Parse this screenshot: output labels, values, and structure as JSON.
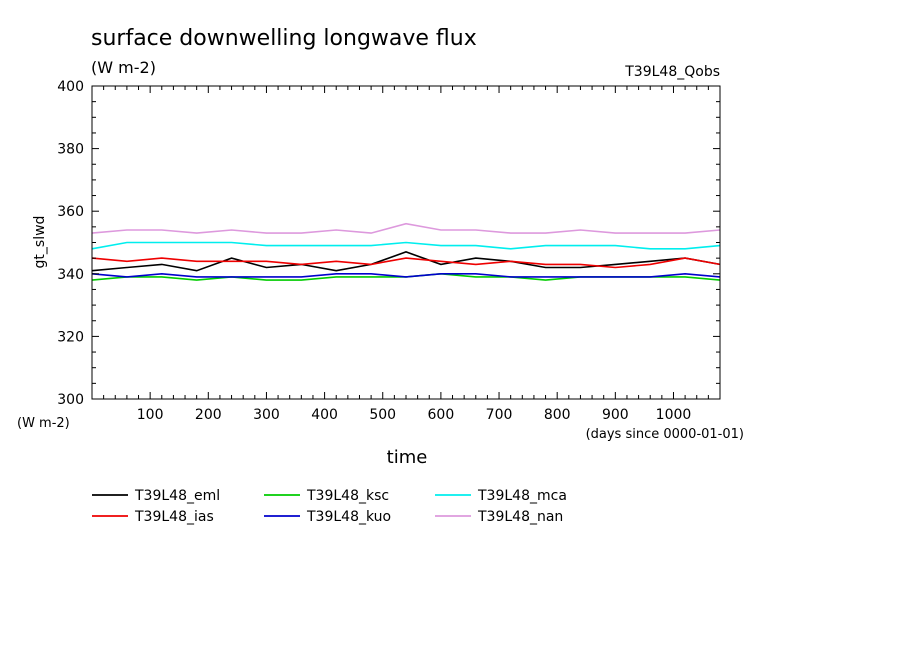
{
  "chart_data": {
    "type": "line",
    "title": "surface downwelling longwave flux",
    "subtitle": "(W m-2)",
    "experiment": "T39L48_Qobs",
    "xlabel": "time",
    "xunits": "(days since 0000-01-01)",
    "ylabel": "gt_slwd",
    "yunits": "(W m-2)",
    "xlim": [
      0,
      1080
    ],
    "ylim": [
      300,
      400
    ],
    "xticks": [
      100,
      200,
      300,
      400,
      500,
      600,
      700,
      800,
      900,
      1000
    ],
    "yticks": [
      300,
      320,
      340,
      360,
      380,
      400
    ],
    "grid": false,
    "legend_position": "bottom",
    "x": [
      0,
      60,
      120,
      180,
      240,
      300,
      360,
      420,
      480,
      540,
      600,
      660,
      720,
      780,
      840,
      900,
      960,
      1020,
      1080
    ],
    "series": [
      {
        "name": "T39L48_eml",
        "color": "#000000",
        "values": [
          341,
          342,
          343,
          341,
          345,
          342,
          343,
          341,
          343,
          347,
          343,
          345,
          344,
          342,
          342,
          343,
          344,
          345,
          343
        ]
      },
      {
        "name": "T39L48_ias",
        "color": "#ee0000",
        "values": [
          345,
          344,
          345,
          344,
          344,
          344,
          343,
          344,
          343,
          345,
          344,
          343,
          344,
          343,
          343,
          342,
          343,
          345,
          343
        ]
      },
      {
        "name": "T39L48_ksc",
        "color": "#00cc00",
        "values": [
          338,
          339,
          339,
          338,
          339,
          338,
          338,
          339,
          339,
          339,
          340,
          339,
          339,
          338,
          339,
          339,
          339,
          339,
          338
        ]
      },
      {
        "name": "T39L48_kuo",
        "color": "#0000cc",
        "values": [
          340,
          339,
          340,
          339,
          339,
          339,
          339,
          340,
          340,
          339,
          340,
          340,
          339,
          339,
          339,
          339,
          339,
          340,
          339
        ]
      },
      {
        "name": "T39L48_mca",
        "color": "#00eeee",
        "values": [
          348,
          350,
          350,
          350,
          350,
          349,
          349,
          349,
          349,
          350,
          349,
          349,
          348,
          349,
          349,
          349,
          348,
          348,
          349
        ]
      },
      {
        "name": "T39L48_nan",
        "color": "#dd99dd",
        "values": [
          353,
          354,
          354,
          353,
          354,
          353,
          353,
          354,
          353,
          356,
          354,
          354,
          353,
          353,
          354,
          353,
          353,
          353,
          354
        ]
      }
    ]
  }
}
